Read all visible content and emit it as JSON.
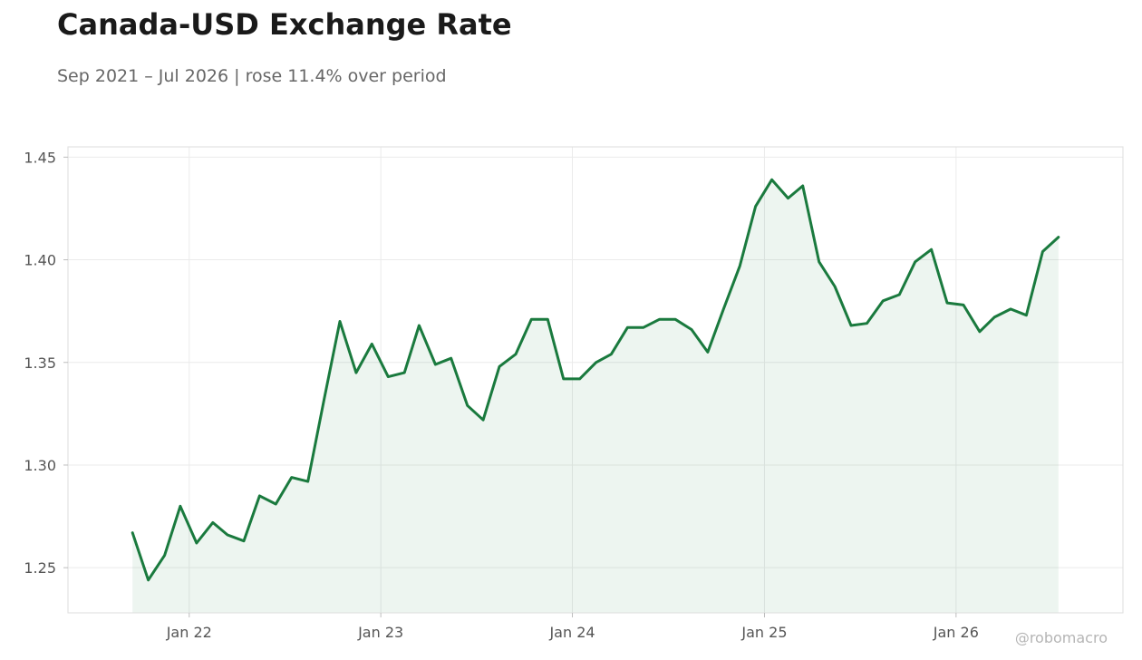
{
  "header": {
    "title": "Canada-USD Exchange Rate",
    "subtitle": "Sep 2021 – Jul 2026 | rose 11.4% over period"
  },
  "watermark": "@robomacro",
  "colors": {
    "line": "#1a7a3e",
    "fill": "#1a7a3e",
    "grid": "#ebebeb",
    "frame": "#dddddd"
  },
  "chart_data": {
    "type": "area",
    "title": "Canada-USD Exchange Rate",
    "xlabel": "",
    "ylabel": "",
    "ylim": [
      1.228,
      1.455
    ],
    "xlim": [
      "2021-05-15",
      "2026-11-15"
    ],
    "grid": true,
    "yticks": [
      1.25,
      1.3,
      1.35,
      1.4,
      1.45
    ],
    "ytick_labels": [
      "1.25",
      "1.30",
      "1.35",
      "1.40",
      "1.45"
    ],
    "xticks": [
      "2022-01-01",
      "2023-01-01",
      "2024-01-01",
      "2025-01-01",
      "2026-01-01"
    ],
    "xtick_labels": [
      "Jan 22",
      "Jan 23",
      "Jan 24",
      "Jan 25",
      "Jan 26"
    ],
    "series": [
      {
        "x": [
          "2021-09",
          "2021-10",
          "2021-11",
          "2021-12",
          "2022-01",
          "2022-02",
          "2022-03",
          "2022-04",
          "2022-05",
          "2022-06",
          "2022-07",
          "2022-08",
          "2022-09",
          "2022-10",
          "2022-11",
          "2022-12",
          "2023-01",
          "2023-02",
          "2023-03",
          "2023-04",
          "2023-05",
          "2023-06",
          "2023-07",
          "2023-08",
          "2023-09",
          "2023-10",
          "2023-11",
          "2023-12",
          "2024-01",
          "2024-02",
          "2024-03",
          "2024-04",
          "2024-05",
          "2024-06",
          "2024-07",
          "2024-08",
          "2024-09",
          "2024-10",
          "2024-11",
          "2024-12",
          "2025-01",
          "2025-02",
          "2025-03",
          "2025-04",
          "2025-05",
          "2025-06",
          "2025-07",
          "2025-08",
          "2025-09",
          "2025-10",
          "2025-11",
          "2025-12",
          "2026-01",
          "2026-02",
          "2026-03",
          "2026-04",
          "2026-05",
          "2026-06",
          "2026-07"
        ],
        "values": [
          1.267,
          1.244,
          1.256,
          1.28,
          1.262,
          1.272,
          1.266,
          1.263,
          1.285,
          1.281,
          1.294,
          1.292,
          1.332,
          1.37,
          1.345,
          1.359,
          1.343,
          1.345,
          1.368,
          1.349,
          1.352,
          1.329,
          1.322,
          1.348,
          1.354,
          1.371,
          1.371,
          1.342,
          1.342,
          1.35,
          1.354,
          1.367,
          1.367,
          1.371,
          1.371,
          1.366,
          1.355,
          1.376,
          1.397,
          1.426,
          1.439,
          1.43,
          1.436,
          1.399,
          1.387,
          1.368,
          1.369,
          1.38,
          1.383,
          1.399,
          1.405,
          1.379,
          1.378,
          1.365,
          1.372,
          1.376,
          1.373,
          1.404,
          1.411
        ]
      }
    ]
  }
}
